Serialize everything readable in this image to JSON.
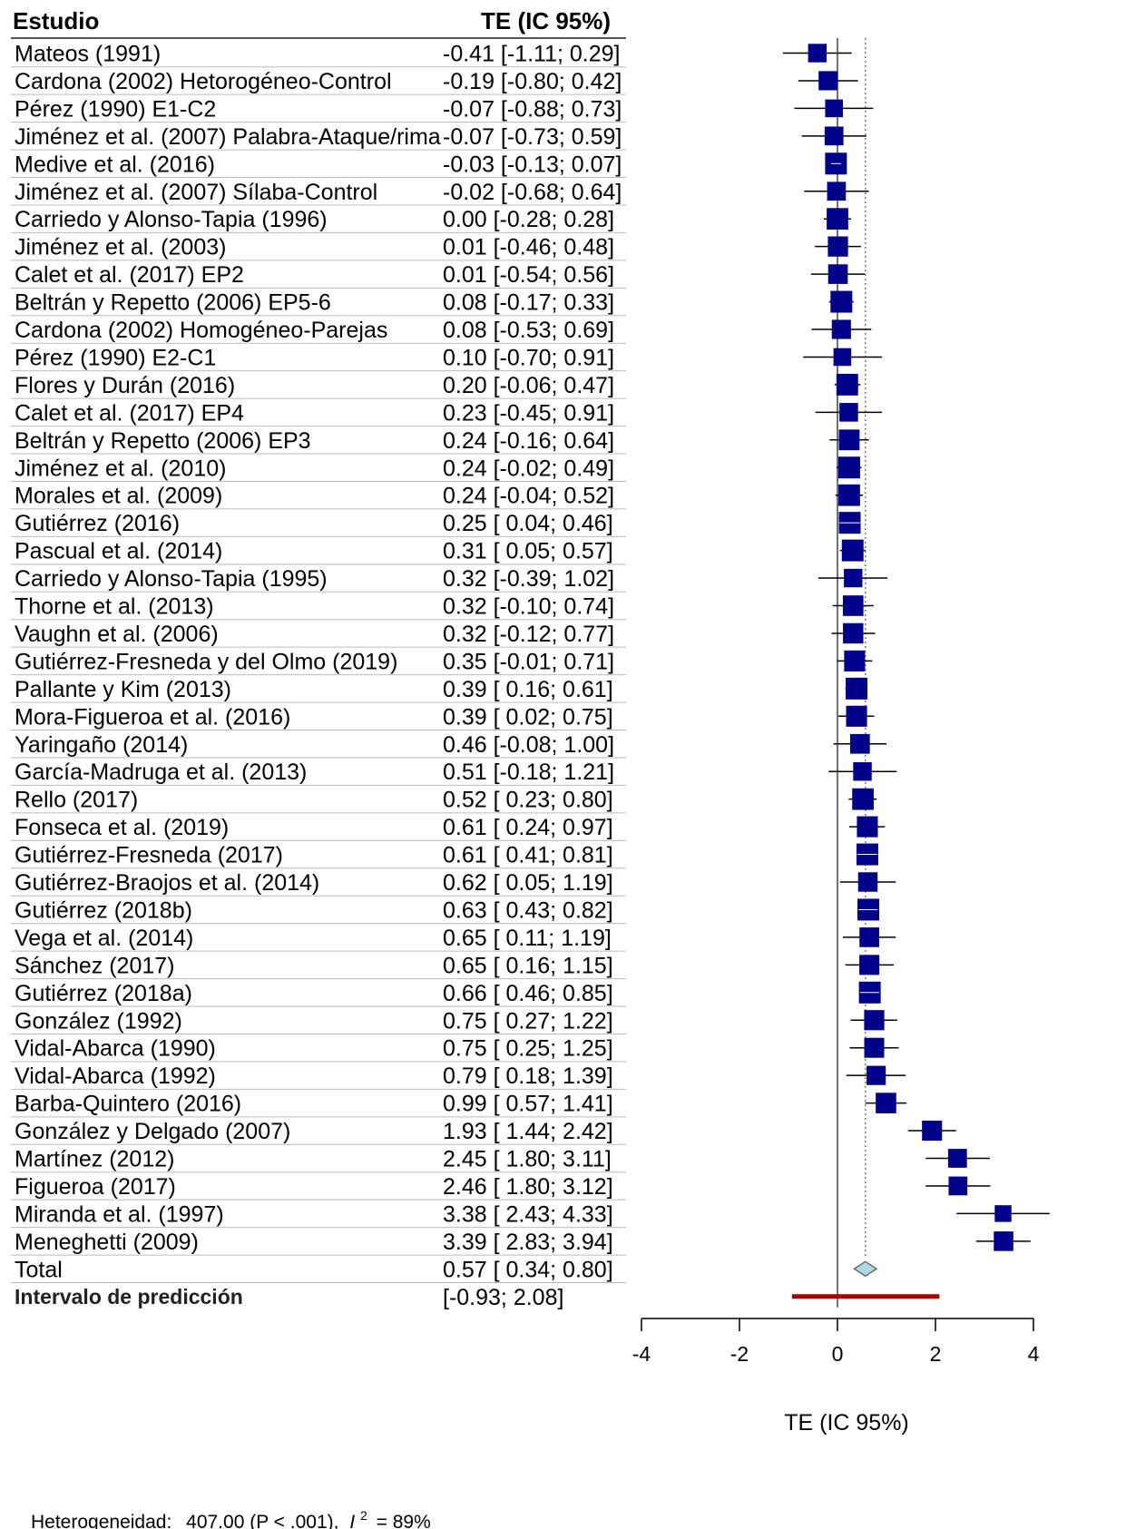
{
  "chart_data": {
    "type": "forest",
    "header_study": "Estudio",
    "header_effect": "TE (IC 95%)",
    "xlabel": "TE (IC 95%)",
    "xlim": [
      -4,
      4
    ],
    "x_ticks": [
      -4,
      -2,
      0,
      2,
      4
    ],
    "colors": {
      "square": "#00008b",
      "diamond_fill": "#add8e6",
      "prediction": "#a50000",
      "reference_line": "#444444"
    },
    "studies": [
      {
        "study": "Mateos (1991)",
        "te": -0.41,
        "lo": -1.11,
        "hi": 0.29,
        "ci_text": "-0.41 [-1.11; 0.29]"
      },
      {
        "study": "Cardona (2002) Hetorogéneo-Control",
        "te": -0.19,
        "lo": -0.8,
        "hi": 0.42,
        "ci_text": "-0.19 [-0.80; 0.42]"
      },
      {
        "study": "Pérez (1990) E1-C2",
        "te": -0.07,
        "lo": -0.88,
        "hi": 0.73,
        "ci_text": "-0.07 [-0.88; 0.73]"
      },
      {
        "study": "Jiménez et al. (2007) Palabra-Ataque/rima",
        "te": -0.07,
        "lo": -0.73,
        "hi": 0.59,
        "ci_text": "-0.07 [-0.73; 0.59]"
      },
      {
        "study": "Medive et al. (2016)",
        "te": -0.03,
        "lo": -0.13,
        "hi": 0.07,
        "ci_text": "-0.03 [-0.13; 0.07]"
      },
      {
        "study": "Jiménez et al. (2007) Sílaba-Control",
        "te": -0.02,
        "lo": -0.68,
        "hi": 0.64,
        "ci_text": "-0.02 [-0.68; 0.64]"
      },
      {
        "study": "Carriedo y Alonso-Tapia (1996)",
        "te": 0.0,
        "lo": -0.28,
        "hi": 0.28,
        "ci_text": "0.00 [-0.28; 0.28]"
      },
      {
        "study": "Jiménez et al. (2003)",
        "te": 0.01,
        "lo": -0.46,
        "hi": 0.48,
        "ci_text": "0.01 [-0.46; 0.48]"
      },
      {
        "study": "Calet et al. (2017) EP2",
        "te": 0.01,
        "lo": -0.54,
        "hi": 0.56,
        "ci_text": "0.01 [-0.54; 0.56]"
      },
      {
        "study": "Beltrán y Repetto (2006) EP5-6",
        "te": 0.08,
        "lo": -0.17,
        "hi": 0.33,
        "ci_text": "0.08 [-0.17; 0.33]"
      },
      {
        "study": "Cardona (2002) Homogéneo-Parejas",
        "te": 0.08,
        "lo": -0.53,
        "hi": 0.69,
        "ci_text": "0.08 [-0.53; 0.69]"
      },
      {
        "study": "Pérez (1990) E2-C1",
        "te": 0.1,
        "lo": -0.7,
        "hi": 0.91,
        "ci_text": "0.10 [-0.70; 0.91]"
      },
      {
        "study": "Flores y Durán (2016)",
        "te": 0.2,
        "lo": -0.06,
        "hi": 0.47,
        "ci_text": "0.20 [-0.06; 0.47]"
      },
      {
        "study": "Calet et al. (2017) EP4",
        "te": 0.23,
        "lo": -0.45,
        "hi": 0.91,
        "ci_text": "0.23 [-0.45; 0.91]"
      },
      {
        "study": "Beltrán y Repetto (2006) EP3",
        "te": 0.24,
        "lo": -0.16,
        "hi": 0.64,
        "ci_text": "0.24 [-0.16; 0.64]"
      },
      {
        "study": "Jiménez et al. (2010)",
        "te": 0.24,
        "lo": -0.02,
        "hi": 0.49,
        "ci_text": "0.24 [-0.02; 0.49]"
      },
      {
        "study": "Morales et al. (2009)",
        "te": 0.24,
        "lo": -0.04,
        "hi": 0.52,
        "ci_text": "0.24 [-0.04; 0.52]"
      },
      {
        "study": "Gutiérrez (2016)",
        "te": 0.25,
        "lo": 0.04,
        "hi": 0.46,
        "ci_text": "0.25 [ 0.04; 0.46]"
      },
      {
        "study": "Pascual et al. (2014)",
        "te": 0.31,
        "lo": 0.05,
        "hi": 0.57,
        "ci_text": "0.31 [ 0.05; 0.57]"
      },
      {
        "study": "Carriedo y Alonso-Tapia (1995)",
        "te": 0.32,
        "lo": -0.39,
        "hi": 1.02,
        "ci_text": "0.32 [-0.39; 1.02]"
      },
      {
        "study": "Thorne et al. (2013)",
        "te": 0.32,
        "lo": -0.1,
        "hi": 0.74,
        "ci_text": "0.32 [-0.10; 0.74]"
      },
      {
        "study": "Vaughn et al. (2006)",
        "te": 0.32,
        "lo": -0.12,
        "hi": 0.77,
        "ci_text": "0.32 [-0.12; 0.77]"
      },
      {
        "study": "Gutiérrez-Fresneda y del Olmo (2019)",
        "te": 0.35,
        "lo": -0.01,
        "hi": 0.71,
        "ci_text": "0.35 [-0.01; 0.71]"
      },
      {
        "study": "Pallante y Kim (2013)",
        "te": 0.39,
        "lo": 0.16,
        "hi": 0.61,
        "ci_text": "0.39 [ 0.16; 0.61]"
      },
      {
        "study": "Mora-Figueroa et al. (2016)",
        "te": 0.39,
        "lo": 0.02,
        "hi": 0.75,
        "ci_text": "0.39 [ 0.02; 0.75]"
      },
      {
        "study": "Yaringaño (2014)",
        "te": 0.46,
        "lo": -0.08,
        "hi": 1.0,
        "ci_text": "0.46 [-0.08; 1.00]"
      },
      {
        "study": "García-Madruga et al. (2013)",
        "te": 0.51,
        "lo": -0.18,
        "hi": 1.21,
        "ci_text": "0.51 [-0.18; 1.21]"
      },
      {
        "study": "Rello (2017)",
        "te": 0.52,
        "lo": 0.23,
        "hi": 0.8,
        "ci_text": "0.52 [ 0.23; 0.80]"
      },
      {
        "study": "Fonseca et al. (2019)",
        "te": 0.61,
        "lo": 0.24,
        "hi": 0.97,
        "ci_text": "0.61 [ 0.24; 0.97]"
      },
      {
        "study": "Gutiérrez-Fresneda (2017)",
        "te": 0.61,
        "lo": 0.41,
        "hi": 0.81,
        "ci_text": "0.61 [ 0.41; 0.81]"
      },
      {
        "study": "Gutiérrez-Braojos et al. (2014)",
        "te": 0.62,
        "lo": 0.05,
        "hi": 1.19,
        "ci_text": "0.62 [ 0.05; 1.19]"
      },
      {
        "study": "Gutiérrez (2018b)",
        "te": 0.63,
        "lo": 0.43,
        "hi": 0.82,
        "ci_text": "0.63 [ 0.43; 0.82]"
      },
      {
        "study": "Vega et al. (2014)",
        "te": 0.65,
        "lo": 0.11,
        "hi": 1.19,
        "ci_text": "0.65 [ 0.11; 1.19]"
      },
      {
        "study": "Sánchez (2017)",
        "te": 0.65,
        "lo": 0.16,
        "hi": 1.15,
        "ci_text": "0.65 [ 0.16; 1.15]"
      },
      {
        "study": "Gutiérrez (2018a)",
        "te": 0.66,
        "lo": 0.46,
        "hi": 0.85,
        "ci_text": "0.66 [ 0.46; 0.85]"
      },
      {
        "study": "González (1992)",
        "te": 0.75,
        "lo": 0.27,
        "hi": 1.22,
        "ci_text": "0.75 [ 0.27; 1.22]"
      },
      {
        "study": "Vidal-Abarca (1990)",
        "te": 0.75,
        "lo": 0.25,
        "hi": 1.25,
        "ci_text": "0.75 [ 0.25; 1.25]"
      },
      {
        "study": "Vidal-Abarca (1992)",
        "te": 0.79,
        "lo": 0.18,
        "hi": 1.39,
        "ci_text": "0.79 [ 0.18; 1.39]"
      },
      {
        "study": "Barba-Quintero (2016)",
        "te": 0.99,
        "lo": 0.57,
        "hi": 1.41,
        "ci_text": "0.99 [ 0.57; 1.41]"
      },
      {
        "study": "González y Delgado (2007)",
        "te": 1.93,
        "lo": 1.44,
        "hi": 2.42,
        "ci_text": "1.93 [ 1.44; 2.42]"
      },
      {
        "study": "Martínez (2012)",
        "te": 2.45,
        "lo": 1.8,
        "hi": 3.11,
        "ci_text": "2.45 [ 1.80; 3.11]"
      },
      {
        "study": "Figueroa (2017)",
        "te": 2.46,
        "lo": 1.8,
        "hi": 3.12,
        "ci_text": "2.46 [ 1.80; 3.12]"
      },
      {
        "study": "Miranda et al. (1997)",
        "te": 3.38,
        "lo": 2.43,
        "hi": 4.33,
        "ci_text": "3.38 [ 2.43; 4.33]"
      },
      {
        "study": "Meneghetti (2009)",
        "te": 3.39,
        "lo": 2.83,
        "hi": 3.94,
        "ci_text": "3.39 [ 2.83; 3.94]"
      }
    ],
    "total": {
      "label": "Total",
      "te": 0.57,
      "lo": 0.34,
      "hi": 0.8,
      "ci_text": "0.57 [ 0.34; 0.80]"
    },
    "prediction": {
      "label": "Intervalo de predicción",
      "lo": -0.93,
      "hi": 2.08,
      "ci_text": "[-0.93; 2.08]"
    },
    "heterogeneity": {
      "label": "Heterogeneidad:",
      "q_text": "407.00 (P < .001),",
      "i2_symbol": "I",
      "i2_sup": "2",
      "i2_value": "= 89%"
    }
  }
}
